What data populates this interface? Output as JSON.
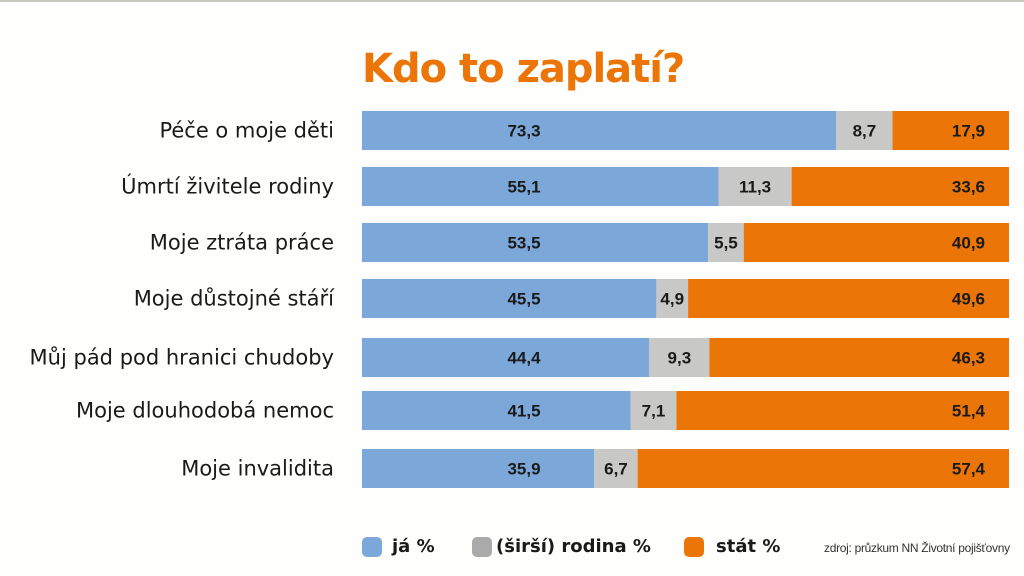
{
  "chart_data": {
    "type": "bar",
    "orientation": "horizontal",
    "stacked": true,
    "title": "Kdo to zaplatí?",
    "xlabel": "",
    "ylabel": "",
    "xlim": [
      0,
      100
    ],
    "grid": false,
    "legend_position": "bottom",
    "categories": [
      "Péče o moje děti",
      "Úmrtí živitele rodiny",
      "Moje ztráta práce",
      "Moje důstojné stáří",
      "Můj pád pod hranici chudoby",
      "Moje dlouhodobá nemoc",
      "Moje invalidita"
    ],
    "series": [
      {
        "name": "já %",
        "color": "#7ba7d9",
        "values": [
          73.3,
          55.1,
          53.5,
          45.5,
          44.4,
          41.5,
          35.9
        ],
        "labels": [
          "73,3",
          "55,1",
          "53,5",
          "45,5",
          "44,4",
          "41,5",
          "35,9"
        ]
      },
      {
        "name": "(širší) rodina %",
        "color": "#c8c8c6",
        "values": [
          8.7,
          11.3,
          5.5,
          4.9,
          9.3,
          7.1,
          6.7
        ],
        "labels": [
          "8,7",
          "11,3",
          "5,5",
          "4,9",
          "9,3",
          "7,1",
          "6,7"
        ]
      },
      {
        "name": "stát %",
        "color": "#eb7506",
        "values": [
          17.9,
          33.6,
          40.9,
          49.6,
          46.3,
          51.4,
          57.4
        ],
        "labels": [
          "17,9",
          "33,6",
          "40,9",
          "49,6",
          "46,3",
          "51,4",
          "57,4"
        ]
      }
    ],
    "source": "zdroj: průzkum NN Životní pojišťovny"
  },
  "legend": [
    {
      "label": "já %",
      "color": "#7ba7d9"
    },
    {
      "label": "(širší) rodina %",
      "color": "#aaaaaa"
    },
    {
      "label": "stát %",
      "color": "#eb7506"
    }
  ]
}
